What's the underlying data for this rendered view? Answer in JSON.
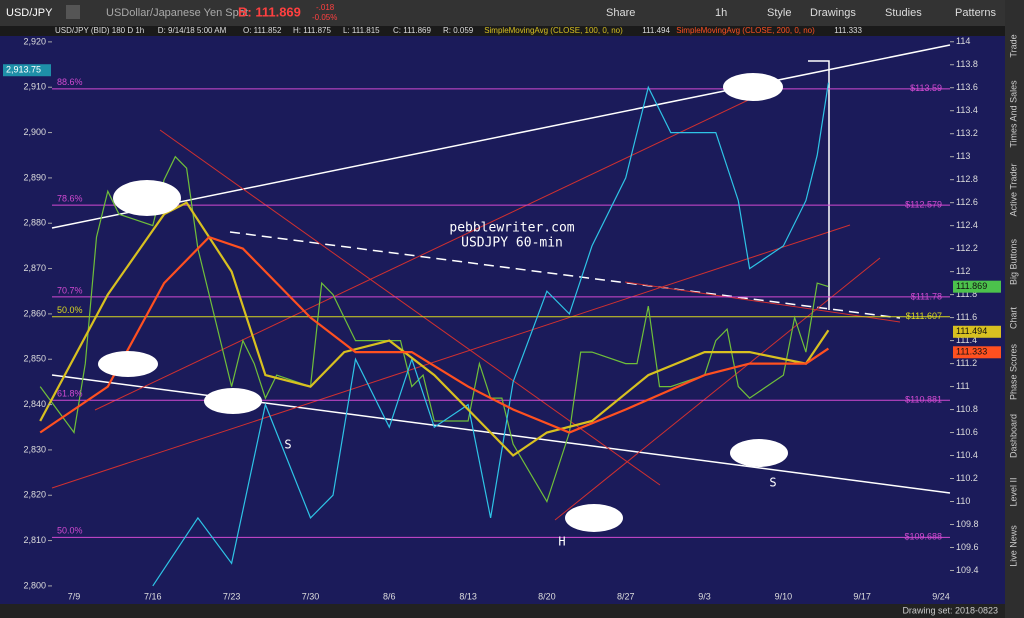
{
  "toolbar": {
    "symbol": "USD/JPY",
    "description": "USDollar/Japanese Yen Spot",
    "bid": "B: 111.869",
    "change": "-.018",
    "change_pct": "-0.05%",
    "buttons": [
      "Share",
      "1h",
      "Style",
      "Drawings",
      "Studies",
      "Patterns"
    ]
  },
  "info_bar": [
    "USD/JPY (BID) 180 D 1h",
    "D: 9/14/18 5:00 AM",
    "O: 111.852",
    "H: 111.875",
    "L: 111.815",
    "C: 111.869",
    "R: 0.059"
  ],
  "chart": {
    "left_axis": {
      "ylim": [
        2799.1,
        2921.3
      ],
      "ticks": [
        {
          "value": 2800,
          "label": "2,800"
        },
        {
          "value": 2810,
          "label": "2,810"
        },
        {
          "value": 2820,
          "label": "2,820"
        },
        {
          "value": 2830,
          "label": "2,830"
        },
        {
          "value": 2840,
          "label": "2,840"
        },
        {
          "value": 2850,
          "label": "2,850"
        },
        {
          "value": 2860,
          "label": "2,860"
        },
        {
          "value": 2870,
          "label": "2,870"
        },
        {
          "value": 2880,
          "label": "2,880"
        },
        {
          "value": 2890,
          "label": "2,890"
        },
        {
          "value": 2900,
          "label": "2,900"
        },
        {
          "value": 2910,
          "label": "2,910"
        },
        {
          "value": 2920,
          "label": "2,920"
        }
      ],
      "tag": {
        "value": 2913.75,
        "label": "2,913.75"
      }
    },
    "right_axis": {
      "ylim": [
        109.23,
        114.05
      ],
      "ticks": [
        109.4,
        109.6,
        109.8,
        110,
        110.2,
        110.4,
        110.6,
        110.8,
        111,
        111.2,
        111.4,
        111.6,
        111.8,
        112,
        112.2,
        112.4,
        112.6,
        112.8,
        113,
        113.2,
        113.4,
        113.6,
        113.8,
        114
      ]
    },
    "x_ticks": [
      "7/9",
      "7/16",
      "7/23",
      "7/30",
      "8/6",
      "8/13",
      "8/20",
      "8/27",
      "9/3",
      "9/10",
      "9/17",
      "9/24"
    ],
    "fib_levels": [
      {
        "pct": "88.6%",
        "value": 113.59,
        "label": "$113.59",
        "color": "#d24ad2"
      },
      {
        "pct": "78.6%",
        "value": 112.579,
        "label": "$112.579",
        "color": "#d24ad2"
      },
      {
        "pct": "70.7%",
        "value": 111.78,
        "label": "$111.78",
        "color": "#d24ad2"
      },
      {
        "pct": "50.0%",
        "value": 111.607,
        "label": "$111.607",
        "color": "#d8d820"
      },
      {
        "pct": "61.8%",
        "value": 110.881,
        "label": "$110.881",
        "color": "#d24ad2"
      },
      {
        "pct": "50.0%",
        "value": 109.688,
        "label": "$109.688",
        "color": "#d24ad2"
      }
    ],
    "price_tags": [
      {
        "value": 111.869,
        "label": "111.869",
        "color": "#4cc24c"
      },
      {
        "value": 111.494,
        "label": "111.494",
        "color": "#d8c020"
      },
      {
        "value": 111.333,
        "label": "111.333",
        "color": "#ff5020"
      }
    ],
    "annotations": [
      "pebblewriter.com",
      "USDJPY 60-min",
      "S",
      "S",
      "H"
    ],
    "series": [
      {
        "color": "#6fbf3a",
        "axis": "right",
        "x": [
          "7/6",
          "7/9",
          "7/10",
          "7/11",
          "7/12",
          "7/13",
          "7/16",
          "7/17",
          "7/18",
          "7/19",
          "7/20",
          "7/23",
          "7/24",
          "7/25",
          "7/26",
          "7/27",
          "7/30",
          "7/31",
          "8/1",
          "8/2",
          "8/3",
          "8/6",
          "8/7",
          "8/8",
          "8/9",
          "8/10",
          "8/13",
          "8/14",
          "8/15",
          "8/16",
          "8/17",
          "8/20",
          "8/21",
          "8/22",
          "8/23",
          "8/24",
          "8/27",
          "8/28",
          "8/29",
          "8/30",
          "8/31",
          "9/3",
          "9/4",
          "9/5",
          "9/6",
          "9/7",
          "9/10",
          "9/11",
          "9/12",
          "9/13",
          "9/14"
        ],
        "values": [
          111.0,
          110.6,
          111.2,
          112.3,
          112.7,
          112.5,
          112.4,
          112.8,
          113.0,
          112.9,
          112.2,
          111.0,
          111.4,
          111.2,
          110.9,
          111.1,
          111.0,
          111.9,
          111.8,
          111.6,
          111.4,
          111.4,
          111.4,
          111.0,
          111.1,
          110.7,
          110.7,
          111.2,
          110.9,
          110.9,
          110.5,
          110.0,
          110.3,
          110.6,
          111.3,
          111.3,
          111.2,
          111.2,
          111.7,
          111.0,
          111.0,
          111.1,
          111.4,
          111.5,
          111.0,
          110.9,
          111.1,
          111.6,
          111.3,
          111.9,
          111.87
        ]
      },
      {
        "color": "#2ec4e6",
        "axis": "left",
        "x": [
          "7/16",
          "7/20",
          "7/23",
          "7/26",
          "7/30",
          "8/1",
          "8/3",
          "8/6",
          "8/8",
          "8/10",
          "8/13",
          "8/15",
          "8/17",
          "8/20",
          "8/22",
          "8/24",
          "8/27",
          "8/29",
          "8/31",
          "9/4",
          "9/6",
          "9/7",
          "9/10",
          "9/12",
          "9/13",
          "9/14"
        ],
        "values": [
          2800,
          2815,
          2805,
          2840,
          2815,
          2820,
          2850,
          2835,
          2850,
          2835,
          2840,
          2815,
          2845,
          2865,
          2860,
          2875,
          2890,
          2910,
          2900,
          2900,
          2885,
          2870,
          2875,
          2885,
          2895,
          2911
        ]
      },
      {
        "name": "SimpleMovingAvg (CLOSE, 100, 0, no)",
        "last": "111.494",
        "color": "#d8c020",
        "axis": "right",
        "x": [
          "7/6",
          "7/12",
          "7/17",
          "7/19",
          "7/23",
          "7/26",
          "7/30",
          "8/2",
          "8/6",
          "8/10",
          "8/13",
          "8/17",
          "8/20",
          "8/24",
          "8/29",
          "9/3",
          "9/7",
          "9/12",
          "9/14"
        ],
        "values": [
          110.7,
          111.8,
          112.5,
          112.6,
          112.0,
          111.1,
          111.0,
          111.3,
          111.4,
          111.1,
          110.8,
          110.4,
          110.6,
          110.7,
          111.1,
          111.3,
          111.3,
          111.2,
          111.49
        ]
      },
      {
        "name": "SimpleMovingAvg (CLOSE, 200, 0, no)",
        "last": "111.333",
        "color": "#ff5020",
        "axis": "right",
        "x": [
          "7/6",
          "7/12",
          "7/17",
          "7/21",
          "7/24",
          "7/30",
          "8/3",
          "8/8",
          "8/13",
          "8/17",
          "8/22",
          "8/27",
          "9/3",
          "9/7",
          "9/12",
          "9/14"
        ],
        "values": [
          110.6,
          111.0,
          111.9,
          112.3,
          112.2,
          111.6,
          111.3,
          111.3,
          111.0,
          110.8,
          110.6,
          110.8,
          111.1,
          111.2,
          111.2,
          111.33
        ]
      }
    ]
  },
  "sidebar": [
    "Trade",
    "Times And Sales",
    "Active Trader",
    "Big Buttons",
    "Chart",
    "Phase Scores",
    "Dashboard",
    "Level II",
    "Live News"
  ],
  "status": "Drawing set: 2018-0823"
}
